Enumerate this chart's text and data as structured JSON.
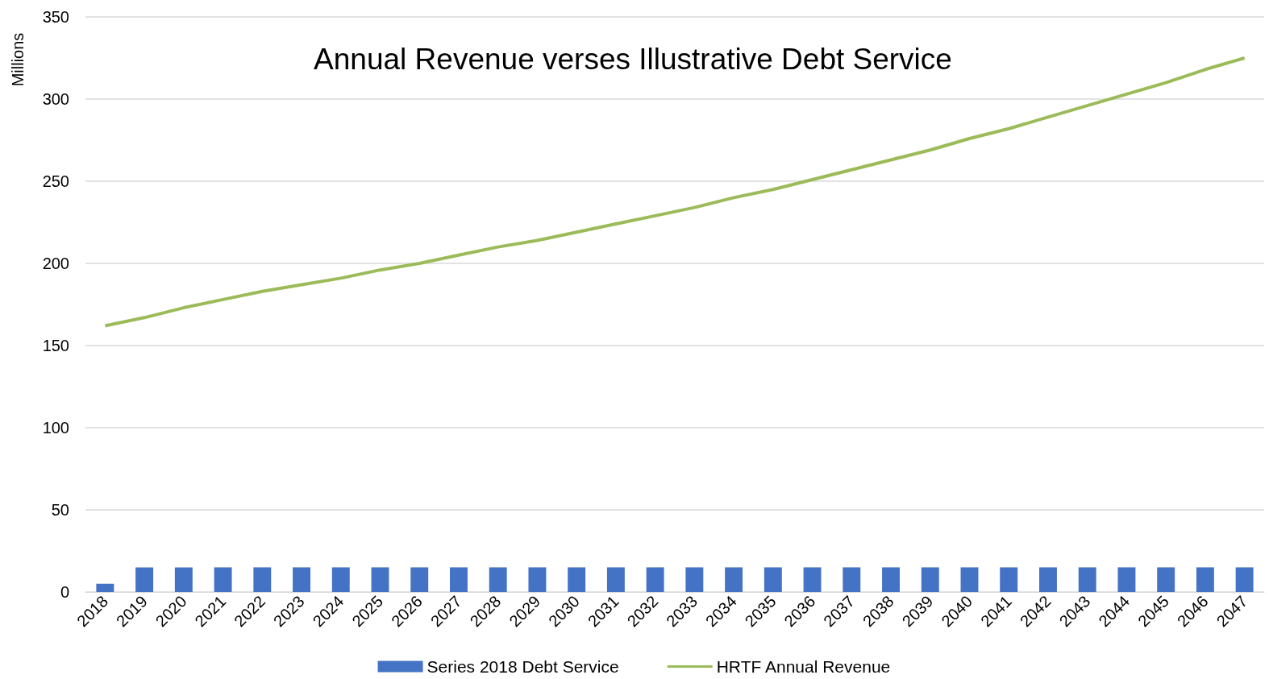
{
  "chart_data": {
    "type": "bar",
    "title": "Annual Revenue verses Illustrative Debt Service",
    "ylabel": "Millions",
    "categories": [
      "2018",
      "2019",
      "2020",
      "2021",
      "2022",
      "2023",
      "2024",
      "2025",
      "2026",
      "2027",
      "2028",
      "2029",
      "2030",
      "2031",
      "2032",
      "2033",
      "2034",
      "2035",
      "2036",
      "2037",
      "2038",
      "2039",
      "2040",
      "2041",
      "2042",
      "2043",
      "2044",
      "2045",
      "2046",
      "2047"
    ],
    "series": [
      {
        "name": "Series 2018 Debt Service",
        "color": "#4472c4",
        "values": [
          5,
          15,
          15,
          15,
          15,
          15,
          15,
          15,
          15,
          15,
          15,
          15,
          15,
          15,
          15,
          15,
          15,
          15,
          15,
          15,
          15,
          15,
          15,
          15,
          15,
          15,
          15,
          15,
          15,
          15
        ]
      },
      {
        "name": "HRTF Annual Revenue",
        "type": "line",
        "color": "#9bbb59",
        "values": [
          162,
          167,
          173,
          178,
          183,
          187,
          191,
          196,
          200,
          205,
          210,
          214,
          219,
          224,
          229,
          234,
          240,
          245,
          251,
          257,
          263,
          269,
          276,
          282,
          289,
          296,
          303,
          310,
          318,
          325
        ]
      }
    ],
    "ylim": [
      0,
      350
    ],
    "yticks": [
      0,
      50,
      100,
      150,
      200,
      250,
      300,
      350
    ],
    "grid": "y",
    "legend": "bottom",
    "marker": "none"
  }
}
